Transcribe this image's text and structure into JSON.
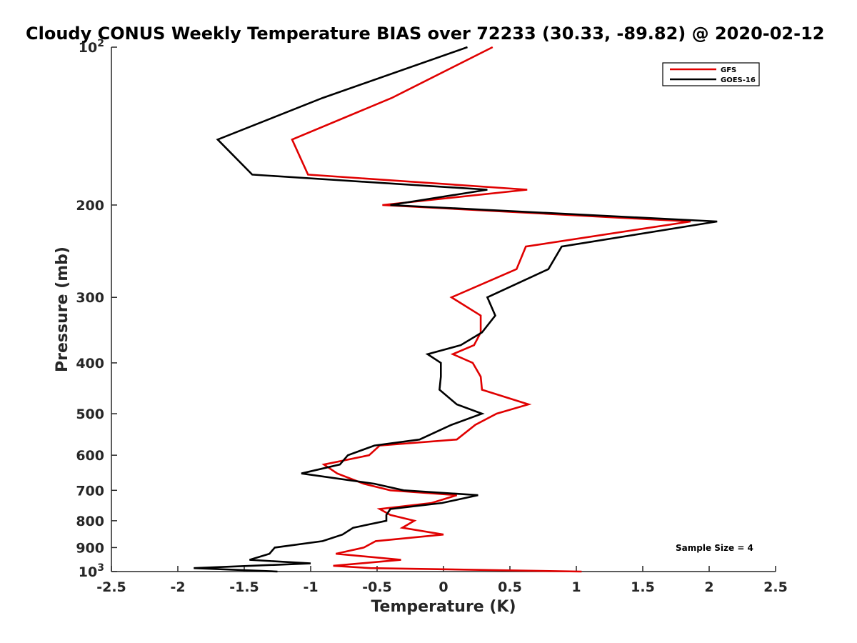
{
  "chart_data": {
    "type": "line",
    "title": "Cloudy CONUS Weekly Temperature BIAS over 72233 (30.33, -89.82) @ 2020-02-12",
    "xlabel": "Temperature (K)",
    "ylabel": "Pressure (mb)",
    "xlim": [
      -2.5,
      2.5
    ],
    "ylim": [
      100,
      1000
    ],
    "yscale": "log",
    "y_reversed": true,
    "grid": false,
    "legend_position": "top-right",
    "x_ticks": [
      "-2.5",
      "-2",
      "-1.5",
      "-1",
      "-0.5",
      "0",
      "0.5",
      "1",
      "1.5",
      "2",
      "2.5"
    ],
    "x_tick_values": [
      -2.5,
      -2,
      -1.5,
      -1,
      -0.5,
      0,
      0.5,
      1,
      1.5,
      2,
      2.5
    ],
    "y_ticks": [
      {
        "value": 100,
        "label": "10",
        "exp": "2"
      },
      {
        "value": 200,
        "label": "200"
      },
      {
        "value": 300,
        "label": "300"
      },
      {
        "value": 400,
        "label": "400"
      },
      {
        "value": 500,
        "label": "500"
      },
      {
        "value": 600,
        "label": "600"
      },
      {
        "value": 700,
        "label": "700"
      },
      {
        "value": 800,
        "label": "800"
      },
      {
        "value": 900,
        "label": "900"
      },
      {
        "value": 1000,
        "label": "10",
        "exp": "3"
      }
    ],
    "annotation": "Sample Size = 4",
    "series": [
      {
        "name": "GFS",
        "color": "#e00000",
        "points": [
          [
            0.37,
            100
          ],
          [
            -0.39,
            125
          ],
          [
            -1.14,
            150
          ],
          [
            -1.02,
            175
          ],
          [
            0.63,
            187
          ],
          [
            -0.46,
            200
          ],
          [
            1.86,
            215
          ],
          [
            0.62,
            240
          ],
          [
            0.55,
            265
          ],
          [
            0.06,
            300
          ],
          [
            0.28,
            325
          ],
          [
            0.28,
            350
          ],
          [
            0.23,
            370
          ],
          [
            0.07,
            385
          ],
          [
            0.22,
            400
          ],
          [
            0.28,
            425
          ],
          [
            0.29,
            450
          ],
          [
            0.64,
            480
          ],
          [
            0.4,
            500
          ],
          [
            0.24,
            525
          ],
          [
            0.1,
            560
          ],
          [
            -0.48,
            575
          ],
          [
            -0.56,
            600
          ],
          [
            -0.9,
            625
          ],
          [
            -0.8,
            650
          ],
          [
            -0.6,
            680
          ],
          [
            -0.4,
            700
          ],
          [
            0.1,
            715
          ],
          [
            -0.09,
            740
          ],
          [
            -0.48,
            760
          ],
          [
            -0.4,
            780
          ],
          [
            -0.22,
            800
          ],
          [
            -0.31,
            825
          ],
          [
            0.0,
            850
          ],
          [
            -0.51,
            875
          ],
          [
            -0.6,
            900
          ],
          [
            -0.81,
            925
          ],
          [
            -0.32,
            950
          ],
          [
            -0.83,
            975
          ],
          [
            -0.55,
            985
          ],
          [
            1.04,
            1000
          ]
        ]
      },
      {
        "name": "GOES-16",
        "color": "#000000",
        "points": [
          [
            0.18,
            100
          ],
          [
            -0.91,
            125
          ],
          [
            -1.7,
            150
          ],
          [
            -1.44,
            175
          ],
          [
            0.33,
            187
          ],
          [
            -0.4,
            200
          ],
          [
            2.06,
            215
          ],
          [
            0.89,
            240
          ],
          [
            0.79,
            265
          ],
          [
            0.33,
            300
          ],
          [
            0.39,
            325
          ],
          [
            0.29,
            350
          ],
          [
            0.13,
            370
          ],
          [
            -0.12,
            385
          ],
          [
            -0.02,
            400
          ],
          [
            -0.02,
            425
          ],
          [
            -0.03,
            450
          ],
          [
            0.1,
            480
          ],
          [
            0.29,
            500
          ],
          [
            0.06,
            525
          ],
          [
            -0.18,
            560
          ],
          [
            -0.52,
            575
          ],
          [
            -0.72,
            600
          ],
          [
            -0.78,
            625
          ],
          [
            -1.07,
            650
          ],
          [
            -0.52,
            680
          ],
          [
            -0.3,
            700
          ],
          [
            0.26,
            715
          ],
          [
            -0.01,
            740
          ],
          [
            -0.4,
            760
          ],
          [
            -0.43,
            780
          ],
          [
            -0.43,
            800
          ],
          [
            -0.68,
            825
          ],
          [
            -0.76,
            850
          ],
          [
            -0.91,
            875
          ],
          [
            -1.27,
            900
          ],
          [
            -1.31,
            925
          ],
          [
            -1.46,
            950
          ],
          [
            -1.0,
            965
          ],
          [
            -1.88,
            985
          ],
          [
            -1.25,
            1000
          ]
        ]
      }
    ]
  }
}
